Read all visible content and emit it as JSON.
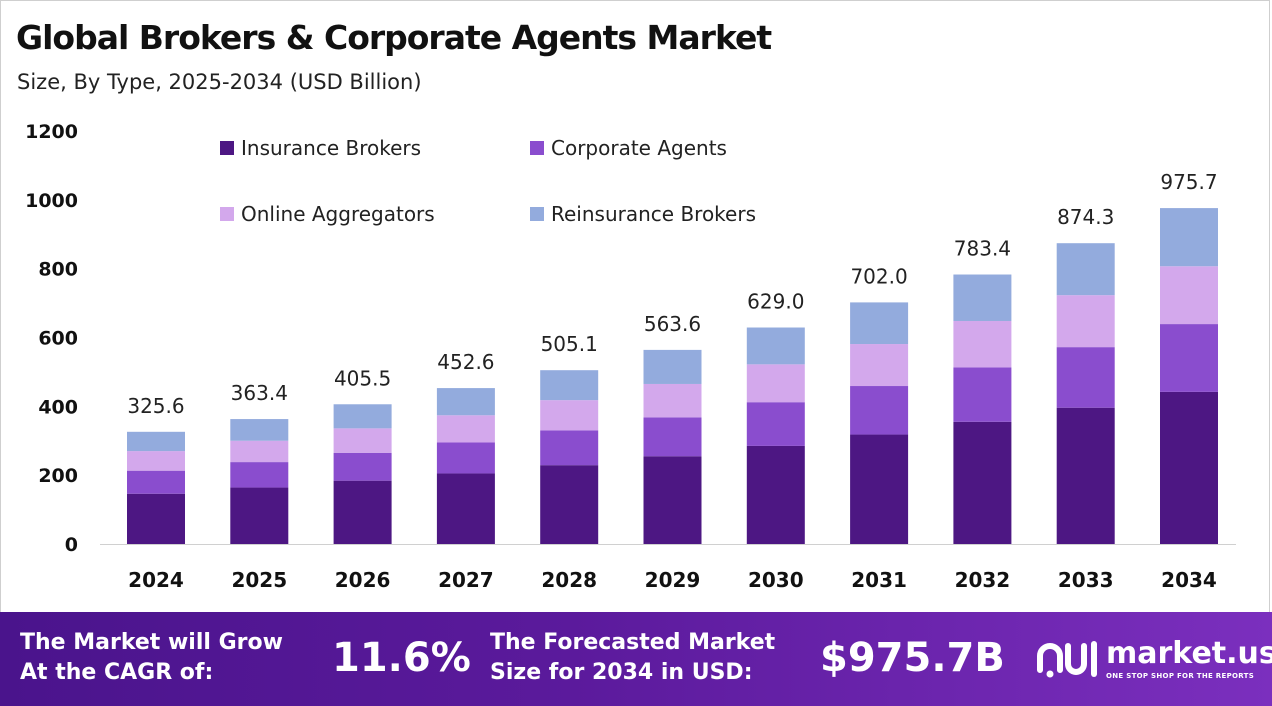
{
  "title": "Global Brokers & Corporate Agents Market",
  "subtitle": "Size, By Type, 2025-2034 (USD Billion)",
  "chart_data": {
    "type": "bar",
    "stacked": true,
    "categories": [
      "2024",
      "2025",
      "2026",
      "2027",
      "2028",
      "2029",
      "2030",
      "2031",
      "2032",
      "2033",
      "2034"
    ],
    "totals": [
      "325.6",
      "363.4",
      "405.5",
      "452.6",
      "505.1",
      "563.6",
      "629.0",
      "702.0",
      "783.4",
      "874.3",
      "975.7"
    ],
    "series": [
      {
        "name": "Insurance Brokers",
        "color": "#4d1783",
        "values": [
          146,
          164,
          184,
          205,
          229,
          255,
          285,
          318,
          355,
          396,
          442
        ]
      },
      {
        "name": "Corporate Agents",
        "color": "#8a4dce",
        "values": [
          67,
          74,
          81,
          90,
          101,
          113,
          127,
          141,
          158,
          176,
          197
        ]
      },
      {
        "name": "Online Aggregators",
        "color": "#d3a8ec",
        "values": [
          57,
          62,
          71,
          79,
          88,
          97,
          110,
          122,
          135,
          151,
          168
        ]
      },
      {
        "name": "Reinsurance Brokers",
        "color": "#93abdd",
        "values": [
          56,
          63,
          70,
          79,
          87,
          99,
          107,
          121,
          135,
          151,
          169
        ]
      }
    ],
    "yticks": [
      "0",
      "200",
      "400",
      "600",
      "800",
      "1000",
      "1200"
    ],
    "ylim": [
      0,
      1200
    ],
    "grid": false,
    "legend": "top-left, 2 columns"
  },
  "footer": {
    "cagr_label": "The Market will Grow\nAt the CAGR of:",
    "cagr_value": "11.6%",
    "forecast_label": "The Forecasted Market\nSize for 2034 in USD:",
    "forecast_value": "$975.7B"
  },
  "logo": {
    "name": "market.us",
    "tagline": "ONE STOP SHOP FOR THE REPORTS",
    "icon": "market-us-logo-icon"
  }
}
